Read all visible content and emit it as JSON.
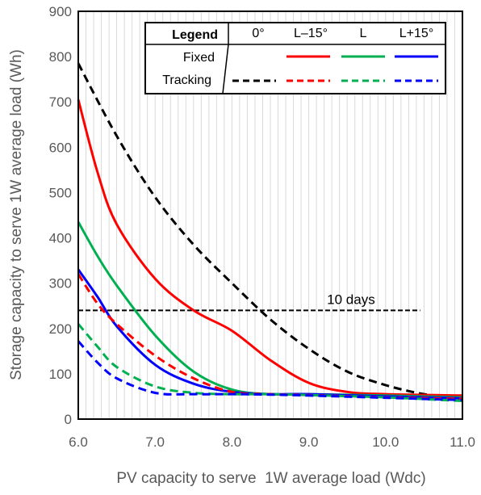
{
  "chart_data": {
    "type": "line",
    "title": "",
    "xlabel": "PV capacity to serve  1W average load (Wdc)",
    "ylabel": "Storage capacity to serve 1W average load (Wh)",
    "xlim": [
      6.0,
      11.0
    ],
    "ylim": [
      0,
      900
    ],
    "x_ticks": [
      "6.0",
      "7.0",
      "8.0",
      "9.0",
      "10.0",
      "11.0"
    ],
    "y_ticks": [
      "0",
      "100",
      "200",
      "300",
      "400",
      "500",
      "600",
      "700",
      "800",
      "900"
    ],
    "grid": "vertical minor gridlines",
    "legend": {
      "title": "Legend",
      "placement": "top-right",
      "columns": [
        "0°",
        "L–15°",
        "L",
        "L+15°"
      ],
      "rows": [
        "Fixed",
        "Tracking"
      ]
    },
    "annotation": {
      "label": "10 days",
      "y": 240,
      "x_range": [
        6.0,
        10.45
      ]
    },
    "series": [
      {
        "name": "Tracking 0°",
        "style": "dashed",
        "color": "#000000",
        "x": [
          6.0,
          6.5,
          7.0,
          7.5,
          8.0,
          8.5,
          9.0,
          9.5,
          10.0,
          10.5,
          11.0
        ],
        "values": [
          785,
          625,
          490,
          385,
          300,
          220,
          155,
          105,
          75,
          55,
          45
        ]
      },
      {
        "name": "Fixed L–15°",
        "style": "solid",
        "color": "#ff0000",
        "x": [
          6.0,
          6.25,
          6.5,
          7.0,
          7.5,
          8.0,
          8.5,
          9.0,
          9.5,
          10.0,
          11.0
        ],
        "values": [
          705,
          545,
          430,
          310,
          240,
          195,
          130,
          80,
          60,
          55,
          52
        ]
      },
      {
        "name": "Fixed L",
        "style": "solid",
        "color": "#00b050",
        "x": [
          6.0,
          6.25,
          6.5,
          7.0,
          7.5,
          8.0,
          8.5,
          9.0,
          10.0,
          11.0
        ],
        "values": [
          435,
          360,
          295,
          185,
          105,
          65,
          55,
          55,
          52,
          48
        ]
      },
      {
        "name": "Fixed L+15°",
        "style": "solid",
        "color": "#0000ff",
        "x": [
          6.0,
          6.25,
          6.5,
          7.0,
          7.5,
          8.0,
          8.5,
          9.0,
          10.0,
          11.0
        ],
        "values": [
          330,
          270,
          205,
          120,
          78,
          60,
          55,
          55,
          50,
          46
        ]
      },
      {
        "name": "Tracking L–15°",
        "style": "dashed",
        "color": "#ff0000",
        "x": [
          6.0,
          6.25,
          6.5,
          7.0,
          7.5,
          8.0,
          8.5,
          9.0,
          10.0,
          11.0
        ],
        "values": [
          320,
          255,
          210,
          140,
          90,
          60,
          55,
          53,
          48,
          45
        ]
      },
      {
        "name": "Tracking L",
        "style": "dashed",
        "color": "#00b050",
        "x": [
          6.0,
          6.25,
          6.5,
          7.0,
          7.5,
          8.0,
          8.5,
          9.0,
          10.0,
          11.0
        ],
        "values": [
          210,
          160,
          115,
          72,
          58,
          55,
          55,
          53,
          48,
          40
        ]
      },
      {
        "name": "Tracking L+15°",
        "style": "dashed",
        "color": "#0000ff",
        "x": [
          6.0,
          6.25,
          6.5,
          7.0,
          7.5,
          8.0,
          8.5,
          9.0,
          10.0,
          11.0
        ],
        "values": [
          172,
          125,
          90,
          58,
          55,
          55,
          54,
          52,
          47,
          42
        ]
      }
    ]
  }
}
